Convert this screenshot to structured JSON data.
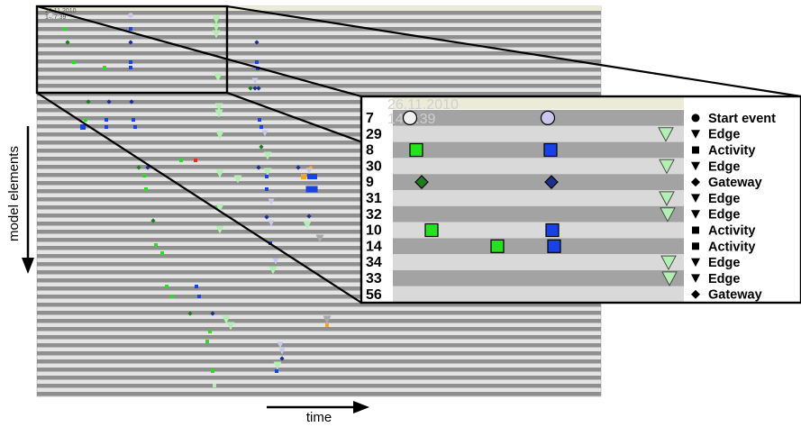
{
  "axes": {
    "y_label": "model elements",
    "x_label": "time"
  },
  "overview": {
    "date": "26.11.2010",
    "time": "14:7:39"
  },
  "zoom": {
    "date": "26.11.2010",
    "time": "14:7:39",
    "rows": [
      {
        "id": "7",
        "legend": "Start event",
        "shape": "circle"
      },
      {
        "id": "29",
        "legend": "Edge",
        "shape": "triangle"
      },
      {
        "id": "8",
        "legend": "Activity",
        "shape": "square"
      },
      {
        "id": "30",
        "legend": "Edge",
        "shape": "triangle"
      },
      {
        "id": "9",
        "legend": "Gateway",
        "shape": "diamond"
      },
      {
        "id": "31",
        "legend": "Edge",
        "shape": "triangle"
      },
      {
        "id": "32",
        "legend": "Edge",
        "shape": "triangle"
      },
      {
        "id": "10",
        "legend": "Activity",
        "shape": "square"
      },
      {
        "id": "14",
        "legend": "Activity",
        "shape": "square"
      },
      {
        "id": "34",
        "legend": "Edge",
        "shape": "triangle"
      },
      {
        "id": "33",
        "legend": "Edge",
        "shape": "triangle"
      },
      {
        "id": "56",
        "legend": "Gateway",
        "shape": "diamond"
      }
    ]
  },
  "colors": {
    "row_dark": "#8f8f8f",
    "row_light": "#d4d4d4",
    "zoom_row_dark": "#a3a3a3",
    "zoom_row_light": "#d9d9d9",
    "bright_green": "#27e020",
    "dark_green": "#1c7d1c",
    "blue": "#1842e6",
    "dark_blue": "#1c2f8c",
    "light_green": "#b2f0b2",
    "light_purple": "#c8c8ee",
    "orange": "#f3a420",
    "red": "#f02a1e"
  }
}
